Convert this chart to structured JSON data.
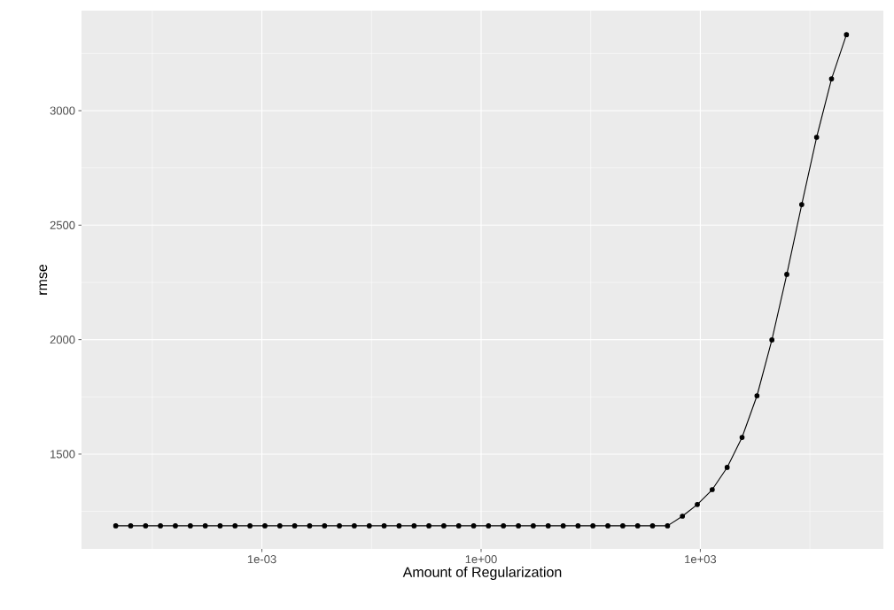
{
  "chart_data": {
    "type": "line",
    "xlabel": "Amount of Regularization",
    "ylabel": "rmse",
    "x": [
      1e-05,
      1.6e-05,
      2.56e-05,
      4.09e-05,
      6.55e-05,
      0.000105,
      0.000168,
      0.000268,
      0.000429,
      0.000687,
      0.0011,
      0.00176,
      0.00281,
      0.0045,
      0.0072,
      0.0115,
      0.0184,
      0.0295,
      0.0471,
      0.0754,
      0.121,
      0.193,
      0.309,
      0.494,
      0.791,
      1.26,
      2.02,
      3.24,
      5.18,
      8.29,
      13.3,
      21.2,
      33.9,
      54.3,
      86.9,
      139,
      222,
      356,
      569,
      910,
      1456,
      2330,
      3728,
      5964,
      9541,
      15264,
      24421,
      39069,
      62506,
      100000
    ],
    "values": [
      1187,
      1187,
      1187,
      1187,
      1187,
      1187,
      1187,
      1187,
      1187,
      1187,
      1187,
      1187,
      1187,
      1187,
      1187,
      1187,
      1187,
      1187,
      1187,
      1187,
      1187,
      1187,
      1187,
      1187,
      1187,
      1187,
      1187,
      1187,
      1187,
      1187,
      1187,
      1187,
      1187,
      1187,
      1187,
      1187,
      1187,
      1187,
      1229,
      1280,
      1345,
      1442,
      1573,
      1755,
      1999,
      2285,
      2590,
      2884,
      3139,
      3332
    ],
    "color": "#000000",
    "marker": "circle",
    "line_style": "solid",
    "log": "x",
    "grid": true,
    "xlim": [
      3.4e-06,
      320000
    ],
    "ylim": [
      1086,
      3437
    ],
    "xticks": [
      {
        "value": 3.162e-05,
        "label": null
      },
      {
        "value": 0.001,
        "label": "1e-03"
      },
      {
        "value": 0.03162,
        "label": null
      },
      {
        "value": 1,
        "label": "1e+00"
      },
      {
        "value": 31.62,
        "label": null
      },
      {
        "value": 1000,
        "label": "1e+03"
      },
      {
        "value": 31623,
        "label": null
      }
    ],
    "yticks": [
      {
        "value": 1250,
        "label": null
      },
      1500,
      {
        "value": 1750,
        "label": null
      },
      2000,
      {
        "value": 2250,
        "label": null
      },
      2500,
      {
        "value": 2750,
        "label": null
      },
      3000,
      {
        "value": 3250,
        "label": null
      }
    ]
  }
}
